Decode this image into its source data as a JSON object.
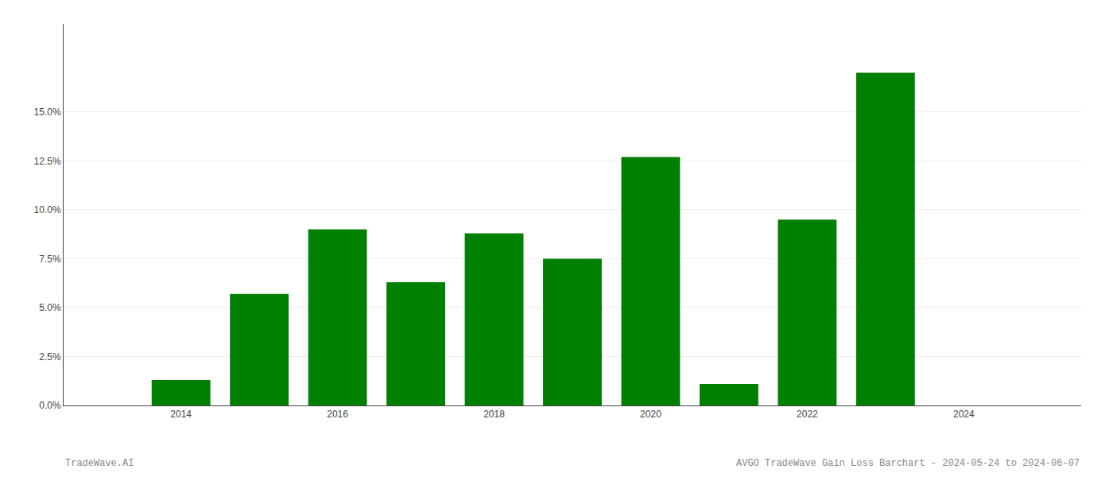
{
  "chart_data": {
    "type": "bar",
    "x": [
      2014,
      2015,
      2016,
      2017,
      2018,
      2019,
      2020,
      2021,
      2022,
      2023
    ],
    "values": [
      0.013,
      0.057,
      0.09,
      0.063,
      0.088,
      0.075,
      0.127,
      0.011,
      0.095,
      0.17
    ],
    "color": "#008000",
    "xlim": [
      2012.5,
      2025.5
    ],
    "xticks": [
      2014,
      2016,
      2018,
      2020,
      2022,
      2024
    ],
    "ylim": [
      0.0,
      0.195
    ],
    "yticks": [
      {
        "value": 0.0,
        "label": "0.0%"
      },
      {
        "value": 0.025,
        "label": "2.5%"
      },
      {
        "value": 0.05,
        "label": "5.0%"
      },
      {
        "value": 0.075,
        "label": "7.5%"
      },
      {
        "value": 0.1,
        "label": "10.0%"
      },
      {
        "value": 0.125,
        "label": "12.5%"
      },
      {
        "value": 0.15,
        "label": "15.0%"
      }
    ],
    "grid": true,
    "annotations": [
      "TradeWave.AI",
      "AVGO TradeWave Gain Loss Barchart - 2024-05-24 to 2024-06-07"
    ]
  }
}
